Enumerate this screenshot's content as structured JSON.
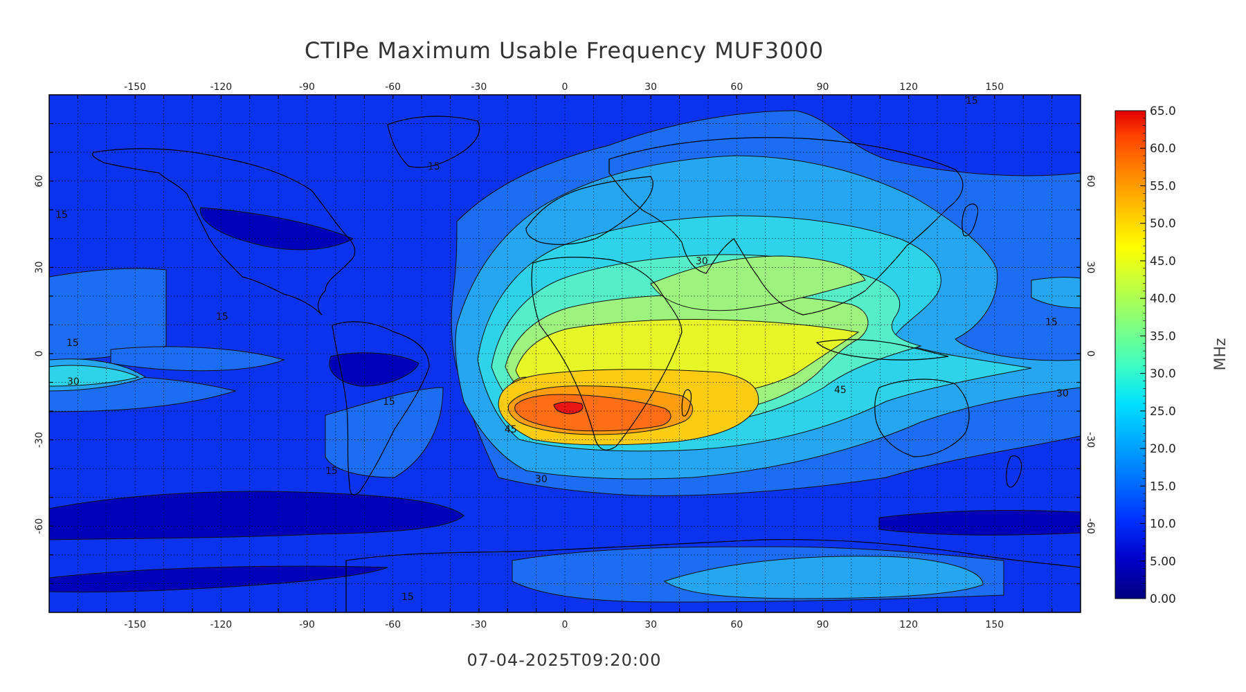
{
  "title": "CTIPe Maximum Usable Frequency MUF3000",
  "timestamp": "07-04-2025T09:20:00",
  "colorbar": {
    "unit": "MHz",
    "labels": [
      "65.0",
      "60.0",
      "55.0",
      "50.0",
      "45.0",
      "40.0",
      "35.0",
      "30.0",
      "25.0",
      "20.0",
      "15.0",
      "10.0",
      "5.00",
      "0.00"
    ],
    "min": 0,
    "max": 65,
    "gradient_colors": [
      "#000080",
      "#0000c8",
      "#0030ff",
      "#0070ff",
      "#00a8ff",
      "#00e0ff",
      "#40ffc0",
      "#80ff80",
      "#c0ff40",
      "#ffff00",
      "#ffc000",
      "#ff8000",
      "#ff4000",
      "#e00000"
    ]
  },
  "map": {
    "projection": "cylindrical equidistant",
    "lon_range": [
      -180,
      180
    ],
    "lat_range": [
      -90,
      90
    ],
    "lon_ticks": [
      "-150",
      "-120",
      "-90",
      "-60",
      "-30",
      "0",
      "30",
      "60",
      "90",
      "120",
      "150"
    ],
    "lat_ticks": [
      "60",
      "30",
      "0",
      "-30",
      "-60"
    ],
    "grid": true,
    "contour_levels_labeled": [
      "15",
      "30",
      "45"
    ]
  },
  "contour_labels": [
    {
      "text": "15"
    },
    {
      "text": "15"
    },
    {
      "text": "15"
    },
    {
      "text": "15"
    },
    {
      "text": "15"
    },
    {
      "text": "15"
    },
    {
      "text": "15"
    },
    {
      "text": "15"
    },
    {
      "text": "30"
    },
    {
      "text": "30"
    },
    {
      "text": "30"
    },
    {
      "text": "30"
    },
    {
      "text": "45"
    },
    {
      "text": "45"
    },
    {
      "text": "15"
    }
  ],
  "field_colors": {
    "c10": "#0000b8",
    "c15": "#0b33ee",
    "c20": "#1d6cf4",
    "c25": "#26a6f0",
    "c30": "#2fd3e9",
    "c35": "#55eec8",
    "c40": "#9ef37f",
    "c45": "#e6f627",
    "c50": "#fbcc12",
    "c55": "#ff9d10",
    "c60": "#ff6d14",
    "c65": "#e91414"
  }
}
